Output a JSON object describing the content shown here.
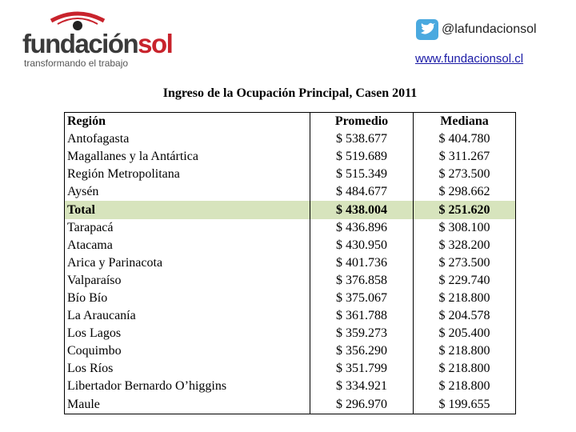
{
  "header": {
    "brand": "fundación",
    "brand_accent": "sol",
    "tagline": "transformando el trabajo",
    "twitter": "@lafundacionsol",
    "website": "www.fundacionsol.cl"
  },
  "title": "Ingreso de la Ocupación Principal, Casen 2011",
  "table": {
    "columns": [
      "Región",
      "Promedio",
      "Mediana"
    ],
    "highlight_row": 4,
    "rows": [
      [
        "Antofagasta",
        "$ 538.677",
        "$ 404.780"
      ],
      [
        "Magallanes y la Antártica",
        "$ 519.689",
        "$ 311.267"
      ],
      [
        "Región Metropolitana",
        "$ 515.349",
        "$ 273.500"
      ],
      [
        "Aysén",
        "$ 484.677",
        "$ 298.662"
      ],
      [
        "Total",
        "$ 438.004",
        "$ 251.620"
      ],
      [
        "Tarapacá",
        "$ 436.896",
        "$ 308.100"
      ],
      [
        "Atacama",
        "$ 430.950",
        "$ 328.200"
      ],
      [
        "Arica y Parinacota",
        "$ 401.736",
        "$ 273.500"
      ],
      [
        "Valparaíso",
        "$ 376.858",
        "$ 229.740"
      ],
      [
        "Bío Bío",
        "$ 375.067",
        "$ 218.800"
      ],
      [
        "La Araucanía",
        "$ 361.788",
        "$ 204.578"
      ],
      [
        "Los Lagos",
        "$ 359.273",
        "$ 205.400"
      ],
      [
        "Coquimbo",
        "$ 356.290",
        "$ 218.800"
      ],
      [
        "Los Ríos",
        "$ 351.799",
        "$ 218.800"
      ],
      [
        "Libertador Bernardo O’higgins",
        "$ 334.921",
        "$ 218.800"
      ],
      [
        "Maule",
        "$ 296.970",
        "$ 199.655"
      ]
    ]
  }
}
